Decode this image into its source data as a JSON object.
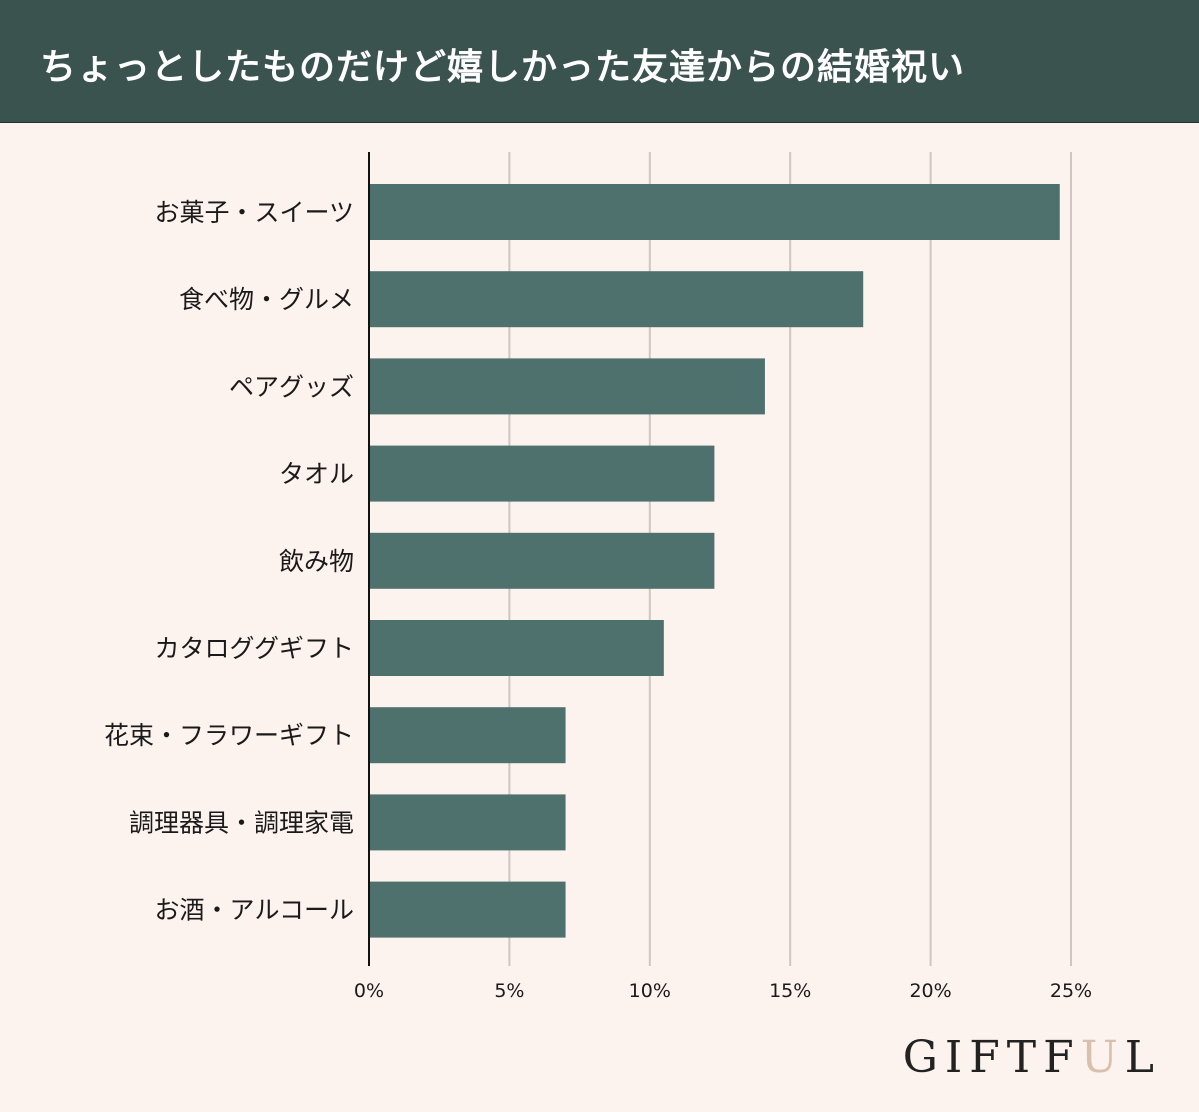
{
  "header": {
    "title": "ちょっとしたものだけど嬉しかった友達からの結婚祝い"
  },
  "logo": {
    "text_before": "GIFTF",
    "text_accent": "U",
    "text_after": "L"
  },
  "colors": {
    "bar": "#4e716e",
    "header_bg": "#3b534e",
    "background": "#fcf2ee",
    "grid": "#cfc6c2",
    "axis": "#111111",
    "logo_accent": "#d9c0ac"
  },
  "chart_data": {
    "type": "bar",
    "orientation": "horizontal",
    "categories": [
      "お菓子・スイーツ",
      "食べ物・グルメ",
      "ペアグッズ",
      "タオル",
      "飲み物",
      "カタロググギフト",
      "花束・フラワーギフト",
      "調理器具・調理家電",
      "お酒・アルコール"
    ],
    "values": [
      24.6,
      17.6,
      14.1,
      12.3,
      12.3,
      10.5,
      7.0,
      7.0,
      7.0
    ],
    "xlim": [
      0,
      25
    ],
    "xticks": [
      0,
      5,
      10,
      15,
      20,
      25
    ],
    "xtick_labels": [
      "0%",
      "5%",
      "10%",
      "15%",
      "20%",
      "25%"
    ],
    "title": "ちょっとしたものだけど嬉しかった友達からの結婚祝い",
    "xlabel": "",
    "ylabel": "",
    "grid": "vertical"
  }
}
